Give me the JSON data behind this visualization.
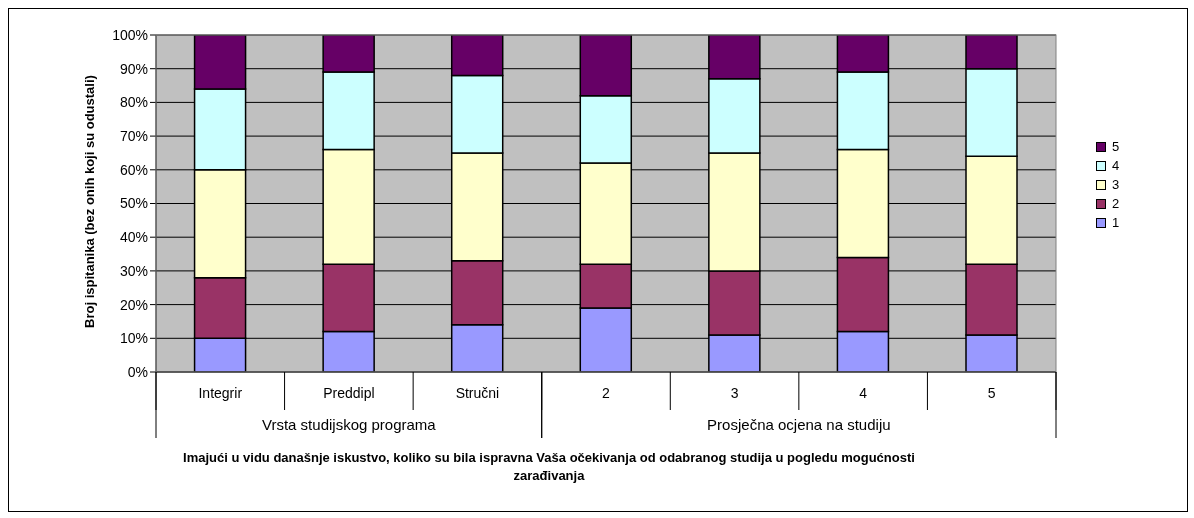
{
  "chart_data": {
    "type": "bar",
    "stacked": true,
    "ylabel": "Broj ispitanika (bez onih koji su odustali)",
    "xlabel": "Imajući u vidu današnje iskustvo, koliko su bila ispravna Vaša očekivanja od odabranog studija u pogledu mogućnosti zarađivanja",
    "categories": [
      "Integrir",
      "Preddipl",
      "Stručni",
      "2",
      "3",
      "4",
      "5"
    ],
    "annotations": [
      "Vrsta studijskog programa",
      "Prosječna ocjena na studiju"
    ],
    "series": [
      {
        "name": "1",
        "color": "#9999ff",
        "values": [
          10,
          12,
          14,
          19,
          11,
          12,
          11
        ]
      },
      {
        "name": "2",
        "color": "#993366",
        "values": [
          18,
          20,
          19,
          13,
          19,
          22,
          21
        ]
      },
      {
        "name": "3",
        "color": "#ffffcc",
        "values": [
          32,
          34,
          32,
          30,
          35,
          32,
          32
        ]
      },
      {
        "name": "4",
        "color": "#ccffff",
        "values": [
          24,
          23,
          23,
          20,
          22,
          23,
          26
        ]
      },
      {
        "name": "5",
        "color": "#660066",
        "values": [
          16,
          11,
          12,
          18,
          13,
          11,
          10
        ]
      }
    ],
    "ylim": [
      0,
      100
    ],
    "yticks": [
      {
        "value": 0,
        "label": "0%"
      },
      {
        "value": 10,
        "label": "10%"
      },
      {
        "value": 20,
        "label": "20%"
      },
      {
        "value": 30,
        "label": "30%"
      },
      {
        "value": 40,
        "label": "40%"
      },
      {
        "value": 50,
        "label": "50%"
      },
      {
        "value": 60,
        "label": "60%"
      },
      {
        "value": 70,
        "label": "70%"
      },
      {
        "value": 80,
        "label": "80%"
      },
      {
        "value": 90,
        "label": "90%"
      },
      {
        "value": 100,
        "label": "100%"
      }
    ],
    "grid": "y",
    "legend": "right"
  }
}
